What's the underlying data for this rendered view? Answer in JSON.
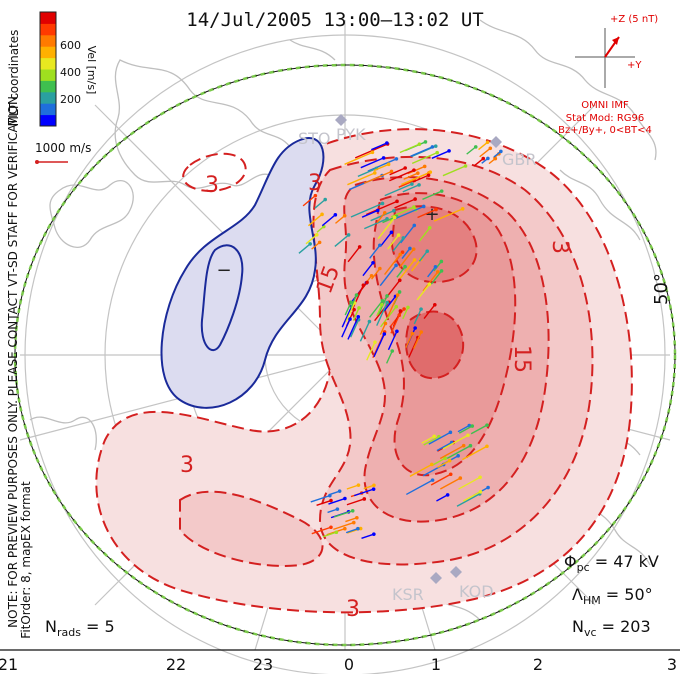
{
  "title": "14/Jul/2005 13:00–13:02 UT",
  "colorbar": {
    "ticks": [
      "600",
      "400",
      "200"
    ],
    "label": "Vel [m/s]",
    "colors": [
      "#0000ff",
      "#1f6fdc",
      "#2aa0a0",
      "#3fbf4f",
      "#9fdf1f",
      "#e8e820",
      "#ffb000",
      "#ff7a00",
      "#ff3a00",
      "#e00000"
    ]
  },
  "scale_label": "1000 m/s",
  "imf": {
    "z_label": "+Z (5 nT)",
    "y_label": "+Y",
    "source": "OMNI IMF",
    "model": "Stat Mod: RG96",
    "condition": "Bz+/By+, 0<BT<4",
    "color": "#e00000"
  },
  "side_note": {
    "line1": "MLT coordinates",
    "line2": "NOTE: FOR PREVIEW PURPOSES ONLY. PLEASE CONTACT VT-SD STAFF FOR VERIFICATION.",
    "line3": "FitOrder: 8, mapEX format"
  },
  "radars": [
    "STO",
    "PYK",
    "GBR",
    "KSR",
    "KOD"
  ],
  "latitude_label": "50°",
  "contour_labels": [
    "3",
    "3",
    "15",
    "15",
    "3",
    "3",
    "3"
  ],
  "potential_markers": {
    "max": "+",
    "min": "−"
  },
  "stats": {
    "phi_pc": "Φpc = 47 kV",
    "phi_symbol": "Φ",
    "phi_sub": "pc",
    "phi_value": " = 47 kV",
    "lambda_symbol": "Λ",
    "lambda_sub": "HM",
    "lambda_value": " = 50°",
    "nvc_symbol": "N",
    "nvc_sub": "vc",
    "nvc_value": " = 203",
    "nrads_symbol": "N",
    "nrads_sub": "rads",
    "nrads_value": " = 5"
  },
  "mlt_axis": [
    "21",
    "22",
    "23",
    "0",
    "1",
    "2",
    "3"
  ],
  "colors": {
    "positive": "#d42020",
    "negative": "#1a2a9a",
    "fill_pos_light": "#f6dede",
    "fill_pos_mid": "#f0b8b8",
    "fill_pos_dark": "#e88888",
    "fill_neg": "#dcdcf0",
    "boundary": "#7ac94a",
    "coast": "#c8c8c8",
    "grid": "#bdbdbd"
  }
}
